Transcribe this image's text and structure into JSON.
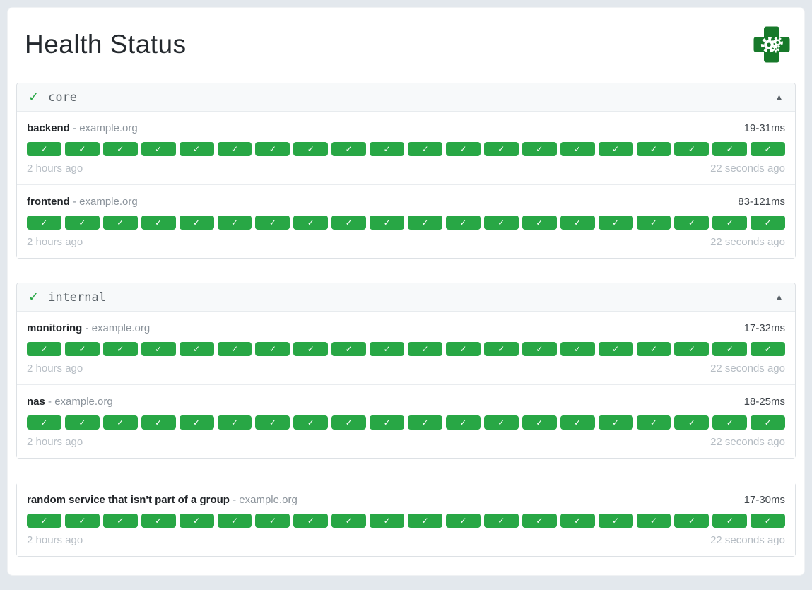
{
  "header": {
    "title": "Health Status",
    "logo": "green medical cross with gears"
  },
  "icons": {
    "group_ok": "✓",
    "collapsed": "▲",
    "check": "✓"
  },
  "colors": {
    "success": "#28a745",
    "logo_green": "#17792a"
  },
  "groups": [
    {
      "name": "core",
      "endpoints": [
        {
          "name": "backend",
          "host": "- example.org",
          "response_time": "19-31ms",
          "oldest": "2 hours ago",
          "newest": "22 seconds ago",
          "checks": 20
        },
        {
          "name": "frontend",
          "host": "- example.org",
          "response_time": "83-121ms",
          "oldest": "2 hours ago",
          "newest": "22 seconds ago",
          "checks": 20
        }
      ]
    },
    {
      "name": "internal",
      "endpoints": [
        {
          "name": "monitoring",
          "host": "- example.org",
          "response_time": "17-32ms",
          "oldest": "2 hours ago",
          "newest": "22 seconds ago",
          "checks": 20
        },
        {
          "name": "nas",
          "host": "- example.org",
          "response_time": "18-25ms",
          "oldest": "2 hours ago",
          "newest": "22 seconds ago",
          "checks": 20
        }
      ]
    },
    {
      "name": "",
      "endpoints": [
        {
          "name": "random service that isn't part of a group",
          "host": "- example.org",
          "response_time": "17-30ms",
          "oldest": "2 hours ago",
          "newest": "22 seconds ago",
          "checks": 20
        }
      ]
    }
  ]
}
